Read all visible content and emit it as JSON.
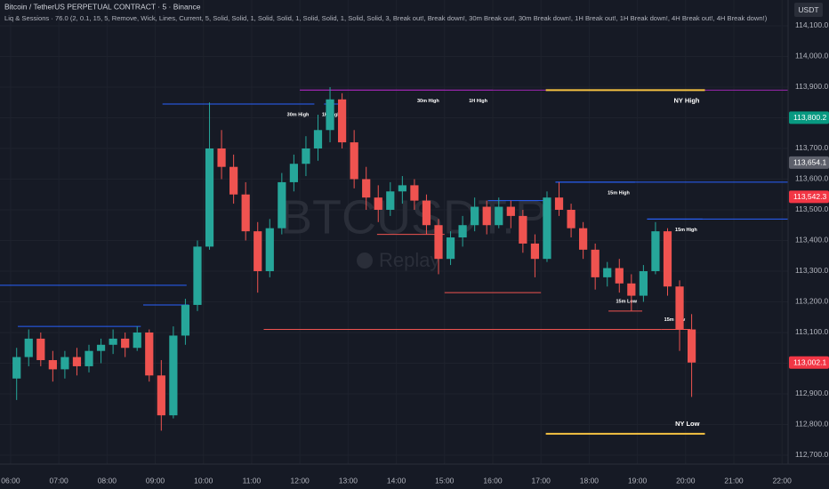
{
  "chart_data": {
    "type": "candlestick",
    "title": "Bitcoin / TetherUS PERPETUAL CONTRACT · 5 · Binance",
    "subtitle": "Liq & Sessions · 76.0 (2, 0.1, 15, 5, Remove, Wick, Lines, Current, 5, Solid, Solid, 1, Solid, Solid, 1, Solid, Solid, 1, Solid, Solid, 3, Break out!, Break down!, 30m Break out!, 30m Break down!, 1H Break out!, 1H Break down!, 4H Break out!, 4H Break down!)",
    "watermark": "BTCUSDT.P",
    "replay": "Replay",
    "currency": "USDT",
    "up_color": "#26a69a",
    "down_color": "#ef5350",
    "grid": true,
    "xlim": [
      5.78,
      22.125
    ],
    "ylim": [
      112671,
      114184
    ],
    "xticks": [
      {
        "value": 6,
        "label": "06:00"
      },
      {
        "value": 7,
        "label": "07:00"
      },
      {
        "value": 8,
        "label": "08:00"
      },
      {
        "value": 9,
        "label": "09:00"
      },
      {
        "value": 10,
        "label": "10:00"
      },
      {
        "value": 11,
        "label": "11:00"
      },
      {
        "value": 12,
        "label": "12:00"
      },
      {
        "value": 13,
        "label": "13:00"
      },
      {
        "value": 14,
        "label": "14:00"
      },
      {
        "value": 15,
        "label": "15:00"
      },
      {
        "value": 16,
        "label": "16:00"
      },
      {
        "value": 17,
        "label": "17:00"
      },
      {
        "value": 18,
        "label": "18:00"
      },
      {
        "value": 19,
        "label": "19:00"
      },
      {
        "value": 20,
        "label": "20:00"
      },
      {
        "value": 21,
        "label": "21:00"
      },
      {
        "value": 22,
        "label": "22:00"
      }
    ],
    "yticks": [
      {
        "value": 112700,
        "label": "112,700.0"
      },
      {
        "value": 112800,
        "label": "112,800.0"
      },
      {
        "value": 112900,
        "label": "112,900.0"
      },
      {
        "value": 113000,
        "label": "113,000.0"
      },
      {
        "value": 113100,
        "label": "113,100.0"
      },
      {
        "value": 113200,
        "label": "113,200.0"
      },
      {
        "value": 113300,
        "label": "113,300.0"
      },
      {
        "value": 113400,
        "label": "113,400.0"
      },
      {
        "value": 113500,
        "label": "113,500.0"
      },
      {
        "value": 113600,
        "label": "113,600.0"
      },
      {
        "value": 113700,
        "label": "113,700.0"
      },
      {
        "value": 113800,
        "label": "113,800.0"
      },
      {
        "value": 113900,
        "label": "113,900.0"
      },
      {
        "value": 114000,
        "label": "114,000.0"
      },
      {
        "value": 114100,
        "label": "114,100.0"
      }
    ],
    "candles": {
      "x": [
        6,
        6.25,
        6.5,
        6.75,
        7,
        7.25,
        7.5,
        7.75,
        8,
        8.25,
        8.5,
        8.75,
        9,
        9.25,
        9.5,
        9.75,
        10,
        10.25,
        10.5,
        10.75,
        11,
        11.25,
        11.5,
        11.75,
        12,
        12.25,
        12.5,
        12.75,
        13,
        13.25,
        13.5,
        13.75,
        14,
        14.25,
        14.5,
        14.75,
        15,
        15.25,
        15.5,
        15.75,
        16,
        16.25,
        16.5,
        16.75,
        17,
        17.25,
        17.5,
        17.75,
        18,
        18.25,
        18.5,
        18.75,
        19,
        19.25,
        19.5,
        19.75,
        20
      ],
      "open": [
        112950,
        113020,
        113080,
        113010,
        112980,
        113020,
        112990,
        113040,
        113060,
        113080,
        113050,
        113100,
        112960,
        112830,
        113090,
        113190,
        113380,
        113700,
        113640,
        113550,
        113430,
        113300,
        113440,
        113590,
        113650,
        113700,
        113760,
        113860,
        113720,
        113600,
        113540,
        113500,
        113560,
        113580,
        113530,
        113450,
        113340,
        113410,
        113450,
        113510,
        113450,
        113510,
        113480,
        113390,
        113340,
        113540,
        113500,
        113440,
        113370,
        113280,
        113310,
        113260,
        113220,
        113300,
        113430,
        113250,
        113110
      ],
      "high": [
        113050,
        113110,
        113100,
        113040,
        113040,
        113050,
        113060,
        113080,
        113110,
        113100,
        113120,
        113110,
        113010,
        113120,
        113210,
        113400,
        113850,
        113760,
        113680,
        113590,
        113460,
        113470,
        113620,
        113680,
        113740,
        113810,
        113900,
        113880,
        113760,
        113640,
        113580,
        113590,
        113610,
        113600,
        113550,
        113470,
        113430,
        113480,
        113540,
        113530,
        113540,
        113530,
        113500,
        113420,
        113560,
        113590,
        113520,
        113460,
        113390,
        113330,
        113340,
        113290,
        113320,
        113460,
        113440,
        113270,
        113160
      ],
      "low": [
        112880,
        112990,
        112990,
        112940,
        112950,
        112960,
        112970,
        113000,
        113030,
        113020,
        113040,
        112940,
        112780,
        112820,
        113060,
        113170,
        113370,
        113600,
        113520,
        113400,
        113230,
        113280,
        113420,
        113560,
        113610,
        113660,
        113720,
        113700,
        113570,
        113500,
        113460,
        113480,
        113520,
        113500,
        113420,
        113290,
        113320,
        113380,
        113430,
        113420,
        113440,
        113440,
        113360,
        113280,
        113330,
        113480,
        113410,
        113340,
        113240,
        113250,
        113230,
        113170,
        113200,
        113290,
        113220,
        113040,
        112890
      ],
      "close": [
        113020,
        113080,
        113010,
        112980,
        113020,
        112990,
        113040,
        113060,
        113080,
        113050,
        113100,
        112960,
        112830,
        113090,
        113190,
        113380,
        113700,
        113640,
        113550,
        113430,
        113300,
        113440,
        113590,
        113650,
        113700,
        113760,
        113860,
        113720,
        113600,
        113540,
        113500,
        113560,
        113580,
        113530,
        113450,
        113340,
        113410,
        113450,
        113510,
        113450,
        113510,
        113480,
        113390,
        113340,
        113540,
        113500,
        113440,
        113370,
        113280,
        113310,
        113260,
        113220,
        113300,
        113430,
        113250,
        113110,
        113002.1
      ]
    },
    "levels": [
      {
        "value": 113890,
        "from": 12,
        "to": 22.125,
        "color": "#9c27b0"
      },
      {
        "value": 113890,
        "from": 12,
        "to": 15,
        "color": "#9c27b0",
        "label": "30m High"
      },
      {
        "value": 113890,
        "from": 12,
        "to": 16,
        "color": "#9c27b0",
        "label": "1H High"
      },
      {
        "value": 113890,
        "from": 17.1,
        "to": 20.4,
        "color": "#f5c242",
        "label": "NY High"
      },
      {
        "value": 113845,
        "from": 9.15,
        "to": 12.3,
        "color": "#2962ff",
        "label": "30m High"
      },
      {
        "value": 113845,
        "from": 12.5,
        "to": 12.95,
        "color": "#2962ff",
        "label": "1H High"
      },
      {
        "value": 113590,
        "from": 17.3,
        "to": 22.125,
        "color": "#2962ff"
      },
      {
        "value": 113590,
        "from": 17.3,
        "to": 18.95,
        "color": "#2962ff",
        "label": "15m High"
      },
      {
        "value": 113470,
        "from": 19.2,
        "to": 22.125,
        "color": "#2962ff"
      },
      {
        "value": 113470,
        "from": 19.2,
        "to": 20.35,
        "color": "#2962ff",
        "label": "15m High"
      },
      {
        "value": 113530,
        "from": 15.9,
        "to": 17.1,
        "color": "#2962ff"
      },
      {
        "value": 113420,
        "from": 13.6,
        "to": 15,
        "color": "#ef5350"
      },
      {
        "value": 113230,
        "from": 15,
        "to": 17,
        "color": "#ef5350"
      },
      {
        "value": 113110,
        "from": 11.25,
        "to": 19.5,
        "color": "#ef5350"
      },
      {
        "value": 113170,
        "from": 18.4,
        "to": 19.1,
        "color": "#ef5350",
        "label": "15m Low"
      },
      {
        "value": 113110,
        "from": 19.5,
        "to": 20.1,
        "color": "#ef5350",
        "label": "15m Low"
      },
      {
        "value": 113254,
        "from": 5.78,
        "to": 9.65,
        "color": "#2962ff"
      },
      {
        "value": 113120,
        "from": 6.15,
        "to": 8.7,
        "color": "#2962ff"
      },
      {
        "value": 113190,
        "from": 8.75,
        "to": 9.7,
        "color": "#2962ff"
      },
      {
        "value": 112770,
        "from": 17.1,
        "to": 20.4,
        "color": "#f5c242",
        "label": "NY Low"
      }
    ],
    "price_labels": [
      {
        "value": 113800.2,
        "label": "113,800.2",
        "color": "#089981"
      },
      {
        "value": 113654.1,
        "label": "113,654.1",
        "color": "#5d606b"
      },
      {
        "value": 113542.3,
        "label": "113,542.3",
        "color": "#f23645"
      },
      {
        "value": 113002.1,
        "label": "113,002.1",
        "color": "#f23645"
      }
    ]
  }
}
